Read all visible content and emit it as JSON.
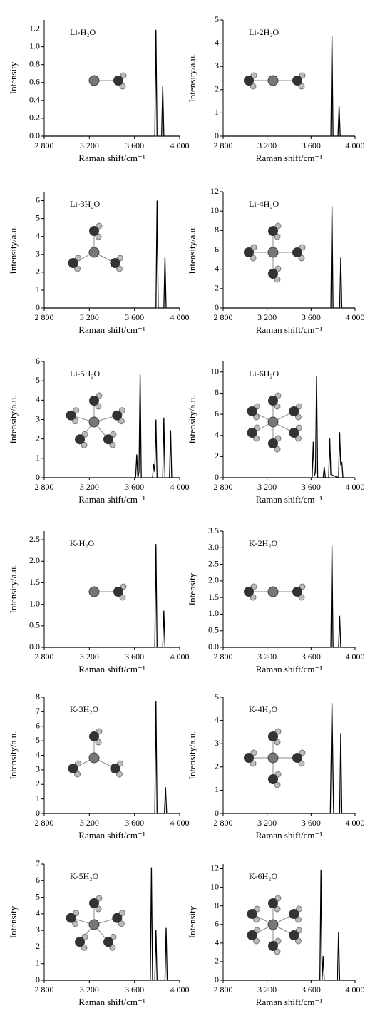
{
  "chart_data": [
    {
      "type": "line",
      "title": "Li-H₂O",
      "x_label": "Raman shift/cm⁻¹",
      "y_label": "Intensity",
      "xlim": [
        2800,
        4000
      ],
      "xticks": [
        {
          "value": 2800,
          "label": "2 800"
        },
        {
          "value": 3200,
          "label": "3 200"
        },
        {
          "value": 3600,
          "label": "3 600"
        },
        {
          "value": 4000,
          "label": "4 000"
        }
      ],
      "ylim": [
        0,
        1.3
      ],
      "yticks": [
        {
          "value": 0,
          "label": "0.0"
        },
        0.2,
        0.4,
        0.6,
        0.8,
        {
          "value": 1,
          "label": "1.0"
        },
        1.2
      ],
      "x": [
        2800,
        3780,
        3790,
        3800,
        3840,
        3850,
        3860,
        4000
      ],
      "values": [
        0,
        0,
        1.19,
        0,
        0,
        0.56,
        0,
        0
      ],
      "color": "#000000"
    },
    {
      "type": "line",
      "title": "Li-2H₂O",
      "x_label": "Raman shift/cm⁻¹",
      "y_label": "Intensity/a.u.",
      "xlim": [
        2800,
        4000
      ],
      "xticks": [
        {
          "value": 2800,
          "label": "2 800"
        },
        {
          "value": 3200,
          "label": "3 200"
        },
        {
          "value": 3600,
          "label": "3 600"
        },
        {
          "value": 4000,
          "label": "4 000"
        }
      ],
      "ylim": [
        0,
        5
      ],
      "yticks": [
        0,
        1,
        2,
        3,
        4,
        5
      ],
      "x": [
        2800,
        3780,
        3790,
        3800,
        3845,
        3855,
        3865,
        4000
      ],
      "values": [
        0,
        0,
        4.3,
        0,
        0,
        1.3,
        0,
        0
      ],
      "color": "#000000"
    },
    {
      "type": "line",
      "title": "Li-3H₂O",
      "x_label": "Raman shift/cm⁻¹",
      "y_label": "Intensity/a.u.",
      "xlim": [
        2800,
        4000
      ],
      "xticks": [
        {
          "value": 2800,
          "label": "2 800"
        },
        {
          "value": 3200,
          "label": "3 200"
        },
        {
          "value": 3600,
          "label": "3 600"
        },
        {
          "value": 4000,
          "label": "4 000"
        }
      ],
      "ylim": [
        0,
        6.5
      ],
      "yticks": [
        0,
        1,
        2,
        3,
        4,
        5,
        6
      ],
      "x": [
        2800,
        3790,
        3800,
        3810,
        3860,
        3870,
        3880,
        4000
      ],
      "values": [
        0,
        0,
        6.0,
        0,
        0,
        2.85,
        0,
        0
      ],
      "color": "#000000"
    },
    {
      "type": "line",
      "title": "Li-4H₂O",
      "x_label": "Raman shift/cm⁻¹",
      "y_label": "Intensity/a.u.",
      "xlim": [
        2800,
        4000
      ],
      "xticks": [
        {
          "value": 2800,
          "label": "2 800"
        },
        {
          "value": 3200,
          "label": "3 200"
        },
        {
          "value": 3600,
          "label": "3 600"
        },
        {
          "value": 4000,
          "label": "4 000"
        }
      ],
      "ylim": [
        0,
        12
      ],
      "yticks": [
        0,
        2,
        4,
        6,
        8,
        10,
        12
      ],
      "x": [
        2800,
        3780,
        3790,
        3800,
        3860,
        3870,
        3880,
        4000
      ],
      "values": [
        0,
        0,
        10.5,
        0,
        0,
        5.2,
        0,
        0
      ],
      "color": "#000000"
    },
    {
      "type": "line",
      "title": "Li-5H₂O",
      "x_label": "Raman shift/cm⁻¹",
      "y_label": "Intensity/a.u.",
      "xlim": [
        2800,
        4000
      ],
      "xticks": [
        {
          "value": 2800,
          "label": "2 800"
        },
        {
          "value": 3200,
          "label": "3 200"
        },
        {
          "value": 3600,
          "label": "3 600"
        },
        {
          "value": 4000,
          "label": "4 000"
        }
      ],
      "ylim": [
        0,
        6
      ],
      "yticks": [
        0,
        1,
        2,
        3,
        4,
        5,
        6
      ],
      "x": [
        2800,
        3610,
        3620,
        3630,
        3640,
        3650,
        3660,
        3760,
        3770,
        3780,
        3790,
        3800,
        3850,
        3860,
        3870,
        3910,
        3920,
        3930,
        4000
      ],
      "values": [
        0,
        0,
        1.2,
        0,
        0.3,
        5.35,
        0,
        0,
        0.7,
        0.3,
        3.0,
        0,
        0,
        3.1,
        0,
        0,
        2.45,
        0,
        0
      ],
      "color": "#000000"
    },
    {
      "type": "line",
      "title": "Li-6H₂O",
      "x_label": "Raman shift/cm⁻¹",
      "y_label": "Intensity/a.u.",
      "xlim": [
        2800,
        4000
      ],
      "xticks": [
        {
          "value": 2800,
          "label": "2 800"
        },
        {
          "value": 3200,
          "label": "3 200"
        },
        {
          "value": 3600,
          "label": "3 600"
        },
        {
          "value": 4000,
          "label": "4 000"
        }
      ],
      "ylim": [
        0,
        11
      ],
      "yticks": [
        0,
        2,
        4,
        6,
        8,
        10
      ],
      "x": [
        2800,
        3610,
        3620,
        3630,
        3640,
        3650,
        3660,
        3710,
        3720,
        3730,
        3760,
        3770,
        3780,
        3850,
        3860,
        3870,
        3880,
        3890,
        4000
      ],
      "values": [
        0,
        0,
        3.4,
        0.2,
        0.5,
        9.6,
        0,
        0,
        1.0,
        0,
        0,
        3.7,
        0.3,
        0,
        4.3,
        1.2,
        1.5,
        0,
        0
      ],
      "color": "#000000"
    },
    {
      "type": "line",
      "title": "K-H₂O",
      "x_label": "Raman shift/cm⁻¹",
      "y_label": "Intensity/a.u.",
      "xlim": [
        2800,
        4000
      ],
      "xticks": [
        {
          "value": 2800,
          "label": "2 800"
        },
        {
          "value": 3200,
          "label": "3 200"
        },
        {
          "value": 3600,
          "label": "3 600"
        },
        {
          "value": 4000,
          "label": "4 000"
        }
      ],
      "ylim": [
        0,
        2.7
      ],
      "yticks": [
        {
          "value": 0,
          "label": "0.0"
        },
        0.5,
        {
          "value": 1,
          "label": "1.0"
        },
        1.5,
        {
          "value": 2,
          "label": "2.0"
        },
        2.5
      ],
      "x": [
        2800,
        3780,
        3790,
        3800,
        3850,
        3860,
        3870,
        4000
      ],
      "values": [
        0,
        0,
        2.4,
        0,
        0,
        0.85,
        0,
        0
      ],
      "color": "#000000"
    },
    {
      "type": "line",
      "title": "K-2H₂O",
      "x_label": "Raman shift/cm⁻¹",
      "y_label": "Intensity",
      "xlim": [
        2800,
        4000
      ],
      "xticks": [
        {
          "value": 2800,
          "label": "2 800"
        },
        {
          "value": 3200,
          "label": "3 200"
        },
        {
          "value": 3600,
          "label": "3 600"
        },
        {
          "value": 4000,
          "label": "4 000"
        }
      ],
      "ylim": [
        0,
        3.5
      ],
      "yticks": [
        {
          "value": 0,
          "label": "0.0"
        },
        0.5,
        {
          "value": 1,
          "label": "1.0"
        },
        1.5,
        {
          "value": 2,
          "label": "2.0"
        },
        2.5,
        {
          "value": 3,
          "label": "3.0"
        },
        3.5
      ],
      "x": [
        2800,
        3780,
        3790,
        3800,
        3850,
        3860,
        3870,
        4000
      ],
      "values": [
        0,
        0,
        3.05,
        0,
        0,
        0.95,
        0,
        0
      ],
      "color": "#000000"
    },
    {
      "type": "line",
      "title": "K-3H₂O",
      "x_label": "Raman shift/cm⁻¹",
      "y_label": "Intensity/a.u.",
      "xlim": [
        2800,
        4000
      ],
      "xticks": [
        {
          "value": 2800,
          "label": "2 800"
        },
        {
          "value": 3200,
          "label": "3 200"
        },
        {
          "value": 3600,
          "label": "3 600"
        },
        {
          "value": 4000,
          "label": "4 000"
        }
      ],
      "ylim": [
        0,
        8
      ],
      "yticks": [
        0,
        1,
        2,
        3,
        4,
        5,
        6,
        7,
        8
      ],
      "x": [
        2800,
        3780,
        3790,
        3800,
        3865,
        3875,
        3885,
        4000
      ],
      "values": [
        0,
        0,
        7.75,
        0,
        0,
        1.8,
        0,
        0
      ],
      "color": "#000000"
    },
    {
      "type": "line",
      "title": "K-4H₂O",
      "x_label": "Raman shift/cm⁻¹",
      "y_label": "Intensity/a.u.",
      "xlim": [
        2800,
        4000
      ],
      "xticks": [
        {
          "value": 2800,
          "label": "2 800"
        },
        {
          "value": 3200,
          "label": "3 200"
        },
        {
          "value": 3600,
          "label": "3 600"
        },
        {
          "value": 4000,
          "label": "4 000"
        }
      ],
      "ylim": [
        0,
        5
      ],
      "yticks": [
        0,
        1,
        2,
        3,
        4,
        5
      ],
      "x": [
        2800,
        3775,
        3790,
        3805,
        3860,
        3870,
        3880,
        4000
      ],
      "values": [
        0,
        0,
        4.75,
        0,
        0,
        3.45,
        0,
        0
      ],
      "color": "#000000"
    },
    {
      "type": "line",
      "title": "K-5H₂O",
      "x_label": "Raman shift/cm⁻¹",
      "y_label": "Intensity",
      "xlim": [
        2800,
        4000
      ],
      "xticks": [
        {
          "value": 2800,
          "label": "2 800"
        },
        {
          "value": 3200,
          "label": "3 200"
        },
        {
          "value": 3600,
          "label": "3 600"
        },
        {
          "value": 4000,
          "label": "4 000"
        }
      ],
      "ylim": [
        0,
        7
      ],
      "yticks": [
        0,
        1,
        2,
        3,
        4,
        5,
        6,
        7
      ],
      "x": [
        2800,
        3740,
        3750,
        3760,
        3780,
        3790,
        3800,
        3870,
        3880,
        3890,
        4000
      ],
      "values": [
        0,
        0,
        6.8,
        0,
        0,
        3.05,
        0,
        0,
        3.15,
        0,
        0
      ],
      "color": "#000000"
    },
    {
      "type": "line",
      "title": "K-6H₂O",
      "x_label": "Raman shift/cm⁻¹",
      "y_label": "Intensity",
      "xlim": [
        2800,
        4000
      ],
      "xticks": [
        {
          "value": 2800,
          "label": "2 800"
        },
        {
          "value": 3200,
          "label": "3 200"
        },
        {
          "value": 3600,
          "label": "3 600"
        },
        {
          "value": 4000,
          "label": "4 000"
        }
      ],
      "ylim": [
        0,
        12.5
      ],
      "yticks": [
        0,
        2,
        4,
        6,
        8,
        10,
        12
      ],
      "x": [
        2800,
        3680,
        3690,
        3700,
        3710,
        3720,
        3840,
        3850,
        3860,
        4000
      ],
      "values": [
        0,
        0,
        11.9,
        0,
        2.6,
        0,
        0,
        5.2,
        0,
        0
      ],
      "color": "#000000"
    }
  ]
}
